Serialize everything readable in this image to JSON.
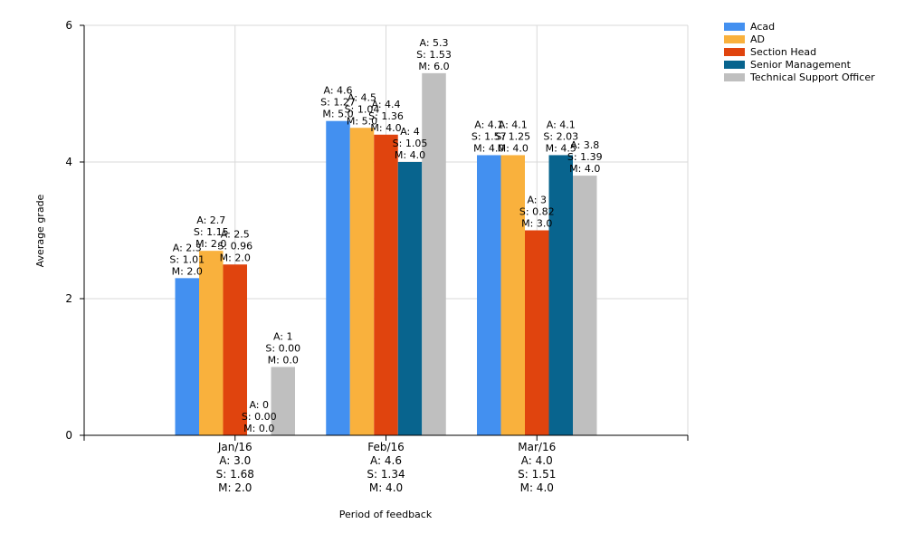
{
  "chart_data": {
    "type": "bar",
    "xlabel": "Period of feedback",
    "ylabel": "Average grade",
    "ylim": [
      0,
      6
    ],
    "yticks": [
      0,
      2,
      4,
      6
    ],
    "grid": true,
    "legend_position": "top-right",
    "categories": [
      "Jan/16",
      "Feb/16",
      "Mar/16"
    ],
    "category_labels": [
      [
        "Jan/16",
        "A: 3.0",
        "S: 1.68",
        "M: 2.0"
      ],
      [
        "Feb/16",
        "A: 4.6",
        "S: 1.34",
        "M: 4.0"
      ],
      [
        "Mar/16",
        "A: 4.0",
        "S: 1.51",
        "M: 4.0"
      ]
    ],
    "series": [
      {
        "name": "Acad",
        "color": "#4390F0",
        "values": [
          2.3,
          4.6,
          4.1
        ],
        "labels": [
          [
            "A: 2.3",
            "S: 1.01",
            "M: 2.0"
          ],
          [
            "A: 4.6",
            "S: 1.27",
            "M: 5.0"
          ],
          [
            "A: 4.1",
            "S: 1.57",
            "M: 4.0"
          ]
        ]
      },
      {
        "name": "AD",
        "color": "#F9B13D",
        "values": [
          2.7,
          4.5,
          4.1
        ],
        "labels": [
          [
            "A: 2.7",
            "S: 1.15",
            "M: 2.0"
          ],
          [
            "A: 4.5",
            "S: 1.04",
            "M: 5.0"
          ],
          [
            "A: 4.1",
            "S: 1.25",
            "M: 4.0"
          ]
        ]
      },
      {
        "name": "Section Head",
        "color": "#E0440E",
        "values": [
          2.5,
          4.4,
          3.0
        ],
        "labels": [
          [
            "A: 2.5",
            "S: 0.96",
            "M: 2.0"
          ],
          [
            "A: 4.4",
            "S: 1.36",
            "M: 4.0"
          ],
          [
            "A: 3",
            "S: 0.82",
            "M: 3.0"
          ]
        ]
      },
      {
        "name": "Senior Management",
        "color": "#08648E",
        "values": [
          0,
          4.0,
          4.1
        ],
        "labels": [
          [
            "A: 0",
            "S: 0.00",
            "M: 0.0"
          ],
          [
            "A: 4",
            "S: 1.05",
            "M: 4.0"
          ],
          [
            "A: 4.1",
            "S: 2.03",
            "M: 4.5"
          ]
        ]
      },
      {
        "name": "Technical Support Officer",
        "color": "#BFBFBF",
        "values": [
          1.0,
          5.3,
          3.8
        ],
        "labels": [
          [
            "A: 1",
            "S: 0.00",
            "M: 0.0"
          ],
          [
            "A: 5.3",
            "S: 1.53",
            "M: 6.0"
          ],
          [
            "A: 3.8",
            "S: 1.39",
            "M: 4.0"
          ]
        ]
      }
    ]
  }
}
